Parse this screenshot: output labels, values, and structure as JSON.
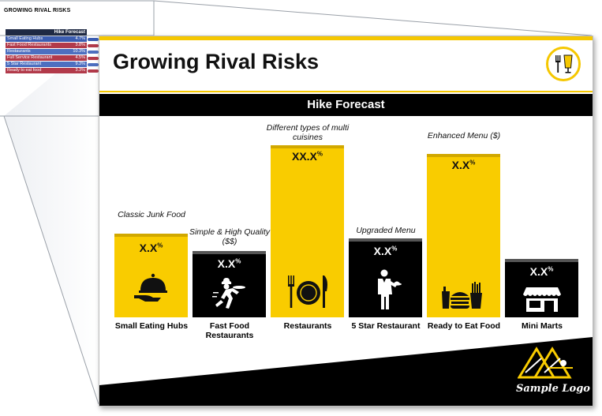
{
  "sheet": {
    "title": "GROWING RIVAL RISKS",
    "table": {
      "header": "Hike Forecast",
      "rows": [
        {
          "label": "Small Eating Hubs",
          "value": "4.7%",
          "color": "#3b5db1",
          "tab": "#3b5db1"
        },
        {
          "label": "Fast Food Restaurants",
          "value": "3.8%",
          "color": "#b23a4a",
          "tab": "#b23a4a"
        },
        {
          "label": "Restaurants",
          "value": "10.3%",
          "color": "#4d6fc0",
          "tab": "#4d6fc0"
        },
        {
          "label": "Full Service Restaurant",
          "value": "4.5%",
          "color": "#b23a4a",
          "tab": "#b23a4a"
        },
        {
          "label": "5 Star Restaurant",
          "value": "9.3%",
          "color": "#4d6fc0",
          "tab": "#4d6fc0"
        },
        {
          "label": "Ready to eat food",
          "value": "3.3%",
          "color": "#b23a4a",
          "tab": "#b23a4a"
        }
      ]
    }
  },
  "slide": {
    "title": "Growing Rival Risks",
    "banner": "Hike Forecast",
    "logo_icon": "fork-knife-glass-icon",
    "sample_logo": "Sample Logo",
    "accent_yellow": "#f9cc00",
    "bars": [
      {
        "category": "Small Eating Hubs",
        "note": "Classic Junk Food",
        "value": "X.X",
        "unit": "%",
        "style": "yellow",
        "icon": "cloche-serving-icon"
      },
      {
        "category": "Fast Food Restaurants",
        "note": "Simple & High Quality ($$)",
        "value": "X.X",
        "unit": "%",
        "style": "black",
        "icon": "running-chef-icon"
      },
      {
        "category": "Restaurants",
        "note": "Different types of multi cuisines",
        "value": "XX.X",
        "unit": "%",
        "style": "yellow",
        "icon": "fork-plate-knife-icon"
      },
      {
        "category": "5 Star Restaurant",
        "note": "Upgraded Menu",
        "value": "X.X",
        "unit": "%",
        "style": "black",
        "icon": "waiter-icon"
      },
      {
        "category": "Ready to Eat Food",
        "note": "Enhanced Menu ($)",
        "value": "X.X",
        "unit": "%",
        "style": "yellow",
        "icon": "burger-fries-drink-icon"
      },
      {
        "category": "Mini Marts",
        "note": "",
        "value": "X.X",
        "unit": "%",
        "style": "black",
        "icon": "storefront-icon"
      }
    ]
  }
}
